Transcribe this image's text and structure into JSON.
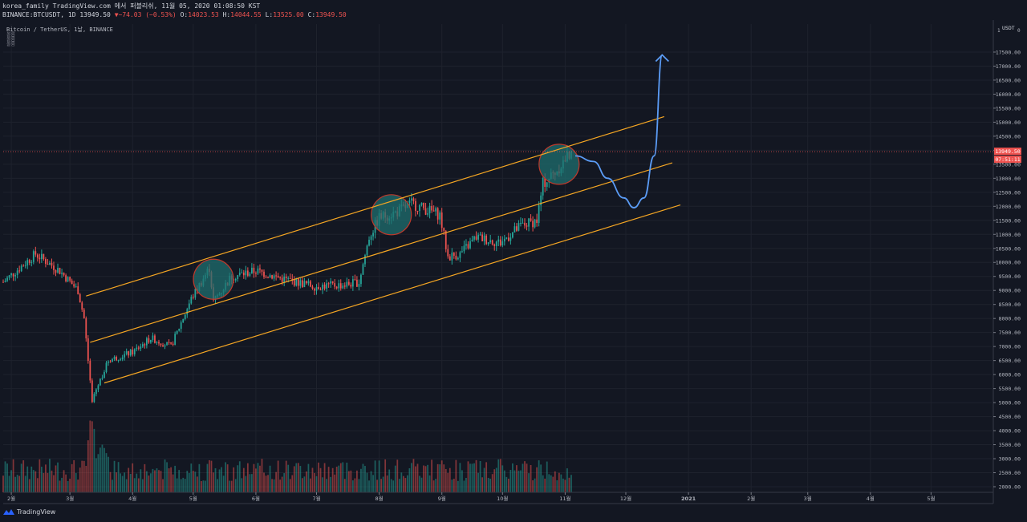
{
  "header": {
    "line1": "korea_family TradingView.com 에서 퍼블리쉬, 11월 05, 2020 01:08:50 KST",
    "symbol": "BINANCE:BTCUSDT, 1D 13949.50",
    "change": "▼−74.03 (−0.53%)",
    "o_label": "O:",
    "o_value": "14023.53",
    "h_label": "H:",
    "h_value": "14044.55",
    "l_label": "L:",
    "l_value": "13525.00",
    "c_label": "C:",
    "c_value": "13949.50"
  },
  "legend": {
    "title": "Bitcoin / TetherUS, 1날, BINANCE",
    "indicators": [
      "볼륨",
      "볼륨",
      "볼륨"
    ]
  },
  "colors": {
    "background": "#131722",
    "up": "#26a69a",
    "down": "#ef5350",
    "channel": "#f5a623",
    "projection": "#5b9cf6",
    "circle_fill": "#1f6f6f",
    "circle_stroke": "#c0392b"
  },
  "footer": {
    "brand": "TradingView"
  },
  "chart_data": {
    "type": "candlestick",
    "currency_label": "USDT",
    "y_ticks": [
      2000,
      2500,
      3000,
      3500,
      4000,
      4500,
      5000,
      5500,
      6000,
      6500,
      7000,
      7500,
      8000,
      8500,
      9000,
      9500,
      10000,
      10500,
      11000,
      11500,
      12000,
      12500,
      13000,
      13500,
      14000,
      14500,
      15000,
      15500,
      16000,
      16500,
      17000,
      17500
    ],
    "y_tick_labels": [
      "2000.00",
      "2500.00",
      "3000.00",
      "3500.00",
      "4000.00",
      "4500.00",
      "5000.00",
      "5500.00",
      "6000.00",
      "6500.00",
      "7000.00",
      "7500.00",
      "8000.00",
      "8500.00",
      "9000.00",
      "9500.00",
      "10000.00",
      "10500.00",
      "11000.00",
      "11500.00",
      "12000.00",
      "12500.00",
      "13000.00",
      "13500.00",
      "14000.00",
      "14500.00",
      "15000.00",
      "15500.00",
      "16000.00",
      "16500.00",
      "17000.00",
      "17500.00"
    ],
    "y_top_labels": [
      "1",
      "0"
    ],
    "ylim": [
      1800,
      18500
    ],
    "x_ticks": [
      {
        "label": "2월",
        "date": "2020-02-01"
      },
      {
        "label": "3월",
        "date": "2020-03-01"
      },
      {
        "label": "4월",
        "date": "2020-04-01"
      },
      {
        "label": "5월",
        "date": "2020-05-01"
      },
      {
        "label": "6월",
        "date": "2020-06-01"
      },
      {
        "label": "7월",
        "date": "2020-07-01"
      },
      {
        "label": "8월",
        "date": "2020-08-01"
      },
      {
        "label": "9월",
        "date": "2020-09-01"
      },
      {
        "label": "10월",
        "date": "2020-10-01"
      },
      {
        "label": "11월",
        "date": "2020-11-01"
      },
      {
        "label": "12월",
        "date": "2020-12-01"
      },
      {
        "label": "2021",
        "date": "2021-01-01"
      },
      {
        "label": "2월",
        "date": "2021-02-01"
      },
      {
        "label": "3월",
        "date": "2021-03-01"
      },
      {
        "label": "4월",
        "date": "2021-04-01"
      },
      {
        "label": "5월",
        "date": "2021-05-01"
      }
    ],
    "xlim": [
      "2020-01-28",
      "2021-05-31"
    ],
    "price_key_points": [
      [
        "2020-01-28",
        9300
      ],
      [
        "2020-02-13",
        10300
      ],
      [
        "2020-02-25",
        9700
      ],
      [
        "2020-03-05",
        9000
      ],
      [
        "2020-03-08",
        8000
      ],
      [
        "2020-03-12",
        5000
      ],
      [
        "2020-03-13",
        5300
      ],
      [
        "2020-03-20",
        6500
      ],
      [
        "2020-04-01",
        6800
      ],
      [
        "2020-04-10",
        7300
      ],
      [
        "2020-04-20",
        7000
      ],
      [
        "2020-04-30",
        8700
      ],
      [
        "2020-05-09",
        9800
      ],
      [
        "2020-05-11",
        8600
      ],
      [
        "2020-05-20",
        9500
      ],
      [
        "2020-06-01",
        9700
      ],
      [
        "2020-06-15",
        9400
      ],
      [
        "2020-06-30",
        9150
      ],
      [
        "2020-07-15",
        9200
      ],
      [
        "2020-07-22",
        9300
      ],
      [
        "2020-07-27",
        10900
      ],
      [
        "2020-08-01",
        11600
      ],
      [
        "2020-08-10",
        11800
      ],
      [
        "2020-08-17",
        12100
      ],
      [
        "2020-08-31",
        11700
      ],
      [
        "2020-09-04",
        10200
      ],
      [
        "2020-09-10",
        10300
      ],
      [
        "2020-09-18",
        10900
      ],
      [
        "2020-09-30",
        10700
      ],
      [
        "2020-10-10",
        11300
      ],
      [
        "2020-10-18",
        11500
      ],
      [
        "2020-10-21",
        12800
      ],
      [
        "2020-10-28",
        13300
      ],
      [
        "2020-11-04",
        13949.5
      ]
    ],
    "last_price": 13949.5,
    "last_price_label": "13949.50",
    "countdown_label": "07:51:11",
    "channel_lines": [
      [
        [
          "2020-03-09",
          8800
        ],
        [
          "2020-12-20",
          15200
        ]
      ],
      [
        [
          "2020-03-11",
          7150
        ],
        [
          "2020-12-24",
          13550
        ]
      ],
      [
        [
          "2020-03-18",
          5700
        ],
        [
          "2020-12-28",
          12050
        ]
      ]
    ],
    "highlight_circles": [
      {
        "date": "2020-05-11",
        "price": 9400
      },
      {
        "date": "2020-08-07",
        "price": 11700
      },
      {
        "date": "2020-10-29",
        "price": 13500
      }
    ],
    "projection_path": [
      [
        "2020-11-06",
        13800
      ],
      [
        "2020-11-15",
        13600
      ],
      [
        "2020-11-22",
        13000
      ],
      [
        "2020-11-30",
        12300
      ],
      [
        "2020-12-05",
        11950
      ],
      [
        "2020-12-10",
        12300
      ],
      [
        "2020-12-15",
        13800
      ],
      [
        "2020-12-19",
        17400
      ]
    ]
  }
}
